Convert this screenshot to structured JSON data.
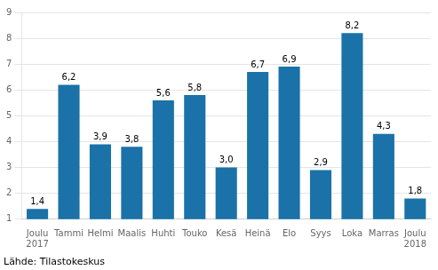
{
  "chart_data": {
    "type": "bar",
    "categories": [
      "Joulu\n2017",
      "Tammi",
      "Helmi",
      "Maalis",
      "Huhti",
      "Touko",
      "Kesä",
      "Heinä",
      "Elo",
      "Syys",
      "Loka",
      "Marras",
      "Joulu\n2018"
    ],
    "values": [
      1.4,
      6.2,
      3.9,
      3.8,
      5.6,
      5.8,
      3.0,
      6.7,
      6.9,
      2.9,
      8.2,
      4.3,
      1.8
    ],
    "value_labels": [
      "1,4",
      "6,2",
      "3,9",
      "3,8",
      "5,6",
      "5,8",
      "3,0",
      "6,7",
      "6,9",
      "2,9",
      "8,2",
      "4,3",
      "1,8"
    ],
    "data_labels": true,
    "color": "#1a72a8",
    "ylim": [
      1,
      9
    ],
    "yticks": [
      1,
      2,
      3,
      4,
      5,
      6,
      7,
      8,
      9
    ],
    "grid": true,
    "annotations": [
      "Lähde: Tilastokeskus"
    ]
  }
}
